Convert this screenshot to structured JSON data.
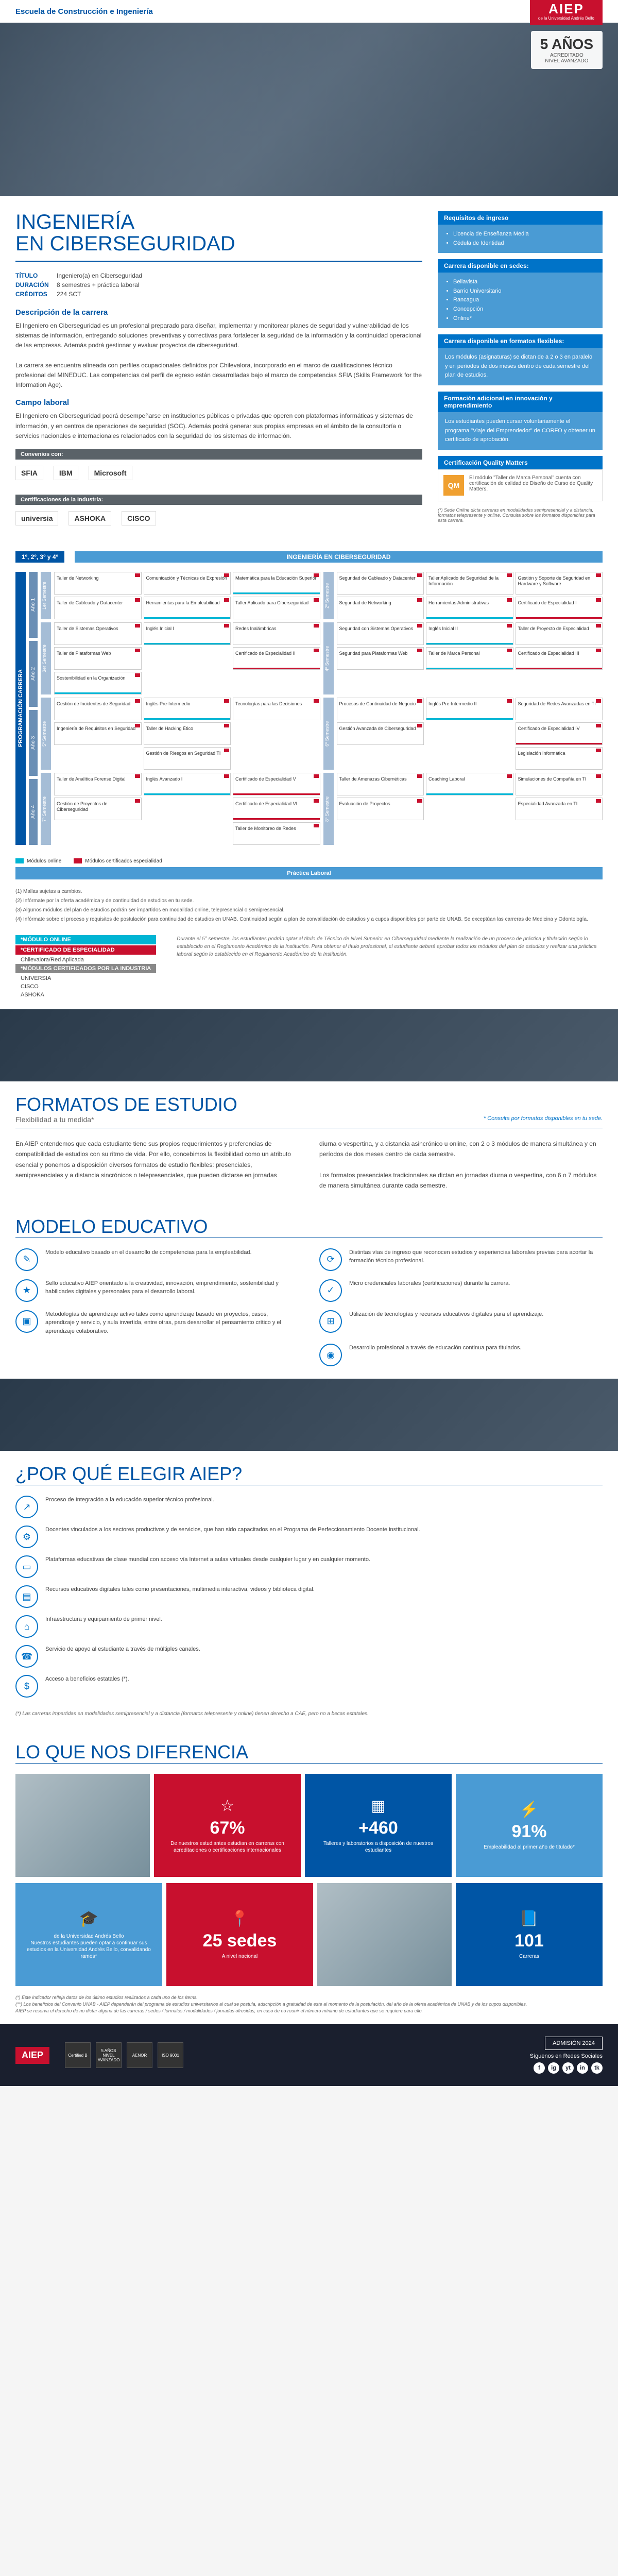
{
  "hero": {
    "school": "Escuela de Construcción e Ingeniería",
    "logo_main": "AIEP",
    "logo_sub": "de la Universidad Andrés Bello",
    "accred_years": "5 AÑOS",
    "accred_label1": "ACREDITADO",
    "accred_label2": "NIVEL AVANZADO"
  },
  "title": "INGENIERÍA\nEN CIBERSEGURIDAD",
  "meta": {
    "titulo_lab": "TÍTULO",
    "titulo_val": "Ingeniero(a) en Ciberseguridad",
    "duracion_lab": "DURACIÓN",
    "duracion_val": "8 semestres + práctica laboral",
    "creditos_lab": "CRÉDITOS",
    "creditos_val": "224 SCT"
  },
  "desc_head": "Descripción de la carrera",
  "desc_body": "El Ingeniero en Ciberseguridad es un profesional preparado para diseñar, implementar y monitorear planes de seguridad y vulnerabilidad de los sistemas de información, entregando soluciones preventivas y correctivas para fortalecer la seguridad de la información y la continuidad operacional de las empresas. Además podrá gestionar y evaluar proyectos de ciberseguridad.\nLa carrera se encuentra alineada con perfiles ocupacionales definidos por Chilevalora, incorporado en el marco de cualificaciones técnico profesional del MINEDUC. Las competencias del perfil de egreso están desarrolladas bajo el marco de competencias SFIA (Skills Framework for the Information Age).",
  "campo_head": "Campo laboral",
  "campo_body": "El Ingeniero en Ciberseguridad podrá desempeñarse en instituciones públicas o privadas que operen con plataformas informáticas y sistemas de información, y en centros de operaciones de seguridad (SOC). Además podrá generar sus propias empresas en el ámbito de la consultoría o servicios nacionales e internacionales relacionados con la seguridad de los sistemas de información.",
  "convenios_head": "Convenios con:",
  "convenios": [
    "SFIA",
    "IBM",
    "Microsoft"
  ],
  "cert_head": "Certificaciones de la Industria:",
  "certs": [
    "universia",
    "ASHOKA",
    "CISCO"
  ],
  "side": {
    "req_head": "Requisitos de ingreso",
    "req_items": [
      "Licencia de Enseñanza Media",
      "Cédula de Identidad"
    ],
    "sedes_head": "Carrera disponible en sedes:",
    "sedes_items": [
      "Bellavista",
      "Barrio Universitario",
      "Rancagua",
      "Concepción",
      "Online*"
    ],
    "flex_head": "Carrera disponible en formatos flexibles:",
    "flex_body": "Los módulos (asignaturas) se dictan de a 2 o 3 en paralelo y en períodos de dos meses dentro de cada semestre del plan de estudios.",
    "innov_head": "Formación adicional en innovación y emprendimiento",
    "innov_body": "Los estudiantes pueden cursar voluntariamente el programa \"Viaje del Emprendedor\" de CORFO y obtener un certificado de aprobación.",
    "qm_head": "Certificación Quality Matters",
    "qm_body": "El módulo \"Taller de Marca Personal\" cuenta con certificación de calidad de Diseño de Curso de Quality Matters.",
    "footnote": "(*) Sede Online dicta carreras en modalidades semipresencial y a distancia, formatos telepresente y online. Consulta sobre los formatos disponibles para esta carrera."
  },
  "curric": {
    "side_label": "PROGRAMACIÓN CARRERA",
    "banner1": "1º, 2º, 3º y 4º",
    "banner2": "INGENIERÍA EN CIBERSEGURIDAD",
    "years": [
      "Año 1",
      "Año 2",
      "Año 3",
      "Año 4"
    ],
    "semesters": [
      {
        "label": "1er Semestre",
        "courses": [
          {
            "t": "Taller de Networking"
          },
          {
            "t": "Comunicación y Técnicas de Expresión"
          },
          {
            "t": "Matemática para la Educación Superior",
            "m": "online"
          },
          {
            "t": "Taller de Cableado y Datacenter"
          },
          {
            "t": "Herramientas para la Empleabilidad",
            "m": "online"
          },
          {
            "t": "Taller Aplicado para Ciberseguridad"
          }
        ]
      },
      {
        "label": "2º Semestre",
        "courses": [
          {
            "t": "Seguridad de Cableado y Datacenter"
          },
          {
            "t": "Taller Aplicado de Seguridad de la Información"
          },
          {
            "t": "Gestión y Soporte de Seguridad en Hardware y Software"
          },
          {
            "t": "Seguridad de Networking"
          },
          {
            "t": "Herramientas Administrativas",
            "m": "online"
          },
          {
            "t": "Certificado de Especialidad I",
            "m": "spec"
          }
        ]
      },
      {
        "label": "3er Semestre",
        "courses": [
          {
            "t": "Taller de Sistemas Operativos"
          },
          {
            "t": "Inglés Inicial I",
            "m": "online"
          },
          {
            "t": "Redes Inalámbricas"
          },
          {
            "t": "Taller de Plataformas Web"
          },
          {
            "t": "",
            "empty": true
          },
          {
            "t": "Certificado de Especialidad II",
            "m": "spec"
          },
          {
            "t": "Sostenibilidad en la Organización",
            "m": "online"
          }
        ]
      },
      {
        "label": "4º Semestre",
        "courses": [
          {
            "t": "Seguridad con Sistemas Operativos"
          },
          {
            "t": "Inglés Inicial II",
            "m": "online"
          },
          {
            "t": "Taller de Proyecto de Especialidad"
          },
          {
            "t": "Seguridad para Plataformas Web"
          },
          {
            "t": "Taller de Marca Personal",
            "m": "online"
          },
          {
            "t": "Certificado de Especialidad III",
            "m": "spec"
          }
        ]
      },
      {
        "label": "5º Semestre",
        "courses": [
          {
            "t": "Gestión de Incidentes de Seguridad"
          },
          {
            "t": "Inglés Pre-Intermedio",
            "m": "online"
          },
          {
            "t": "Tecnologías para las Decisiones"
          },
          {
            "t": "Ingeniería de Requisitos en Seguridad"
          },
          {
            "t": "Taller de Hacking Ético"
          },
          {
            "t": "",
            "empty": true
          },
          {
            "t": "",
            "empty": true
          },
          {
            "t": "Gestión de Riesgos en Seguridad TI"
          }
        ]
      },
      {
        "label": "6º Semestre",
        "courses": [
          {
            "t": "Procesos de Continuidad de Negocio"
          },
          {
            "t": "Inglés Pre-Intermedio II",
            "m": "online"
          },
          {
            "t": "Seguridad de Redes Avanzadas en TI"
          },
          {
            "t": "Gestión Avanzada de Ciberseguridad"
          },
          {
            "t": "",
            "empty": true
          },
          {
            "t": "Certificado de Especialidad IV",
            "m": "spec"
          },
          {
            "t": "",
            "empty": true
          },
          {
            "t": "",
            "empty": true
          },
          {
            "t": "Legislación Informática"
          }
        ]
      },
      {
        "label": "7º Semestre",
        "courses": [
          {
            "t": "Taller de Analítica Forense Digital"
          },
          {
            "t": "Inglés Avanzado I",
            "m": "online"
          },
          {
            "t": "Certificado de Especialidad V",
            "m": "spec"
          },
          {
            "t": "Gestión de Proyectos de Ciberseguridad"
          },
          {
            "t": "",
            "empty": true
          },
          {
            "t": "Certificado de Especialidad VI",
            "m": "spec"
          },
          {
            "t": "",
            "empty": true
          },
          {
            "t": "",
            "empty": true
          },
          {
            "t": "Taller de Monitoreo de Redes"
          }
        ]
      },
      {
        "label": "8º Semestre",
        "courses": [
          {
            "t": "Taller de Amenazas Cibernéticas"
          },
          {
            "t": "Coaching Laboral",
            "m": "online"
          },
          {
            "t": "Simulaciones de Compañía en TI"
          },
          {
            "t": "Evaluación de Proyectos"
          },
          {
            "t": "",
            "empty": true
          },
          {
            "t": "Especialidad Avanzada en TI"
          }
        ]
      }
    ],
    "legend_online": "Módulos online",
    "legend_spec": "Módulos certificados especialidad",
    "practica": "Práctica Laboral",
    "footnotes": [
      "(1) Mallas sujetas a cambios.",
      "(2) Infórmate por la oferta académica y de continuidad de estudios en tu sede.",
      "(3) Algunos módulos del plan de estudios podrán ser impartidos en modalidad online, telepresencial o semipresencial.",
      "(4) Infórmate sobre el proceso y requisitos de postulación para continuidad de estudios en UNAB. Continuidad según a plan de convalidación de estudios y a cupos disponibles por parte de UNAB. Se exceptúan las carreras de Medicina y Odontología."
    ],
    "mod_online_head": "*MÓDULO ONLINE",
    "mod_spec_head": "*CERTIFICADO DE ESPECIALIDAD",
    "mod_spec_item": "Chilevalora/Red Aplicada",
    "mod_ind_head": "*MÓDULOS CERTIFICADOS POR LA INDUSTRIA",
    "mod_ind_items": [
      "UNIVERSIA",
      "CISCO",
      "ASHOKA"
    ],
    "mod_desc": "Durante el 5° semestre, los estudiantes podrán optar al título de Técnico de Nivel Superior en Ciberseguridad mediante la realización de un proceso de práctica y titulación según lo establecido en el Reglamento Académico de la Institución. Para obtener el título profesional, el estudiante deberá aprobar todos los módulos del plan de estudios y realizar una práctica laboral según lo establecido en el Reglamento Académico de la Institución."
  },
  "formatos": {
    "title": "FORMATOS DE ESTUDIO",
    "subtitle": "Flexibilidad a tu medida*",
    "note": "* Consulta por formatos disponibles en tu sede.",
    "col1": "En AIEP entendemos que cada estudiante tiene sus propios requerimientos y preferencias de compatibilidad de estudios con su ritmo de vida. Por ello, concebimos la flexibilidad como un atributo esencial y ponemos a disposición diversos formatos de estudio flexibles: presenciales, semipresenciales y a distancia sincrónicos o telepresenciales, que pueden dictarse en jornadas",
    "col2": "diurna o vespertina, y a distancia asincrónico u online, con 2 o 3 módulos de manera simultánea y en períodos de dos meses dentro de cada semestre.\n\nLos formatos presenciales tradicionales se dictan en jornadas diurna o vespertina, con 6 o 7 módulos de manera simultánea durante cada semestre."
  },
  "modelo": {
    "title": "MODELO EDUCATIVO",
    "items": [
      {
        "icon": "✎",
        "text": "Modelo educativo basado en el desarrollo de competencias para la empleabilidad."
      },
      {
        "icon": "⟳",
        "text": "Distintas vías de ingreso que reconocen estudios y experiencias laborales previas para acortar la formación técnico profesional."
      },
      {
        "icon": "★",
        "text": "Sello educativo AIEP orientado a la creatividad, innovación, emprendimiento, sostenibilidad y habilidades digitales y personales para el desarrollo laboral."
      },
      {
        "icon": "✓",
        "text": "Micro credenciales laborales (certificaciones) durante la carrera."
      },
      {
        "icon": "▣",
        "text": "Metodologías de aprendizaje activo tales como aprendizaje basado en proyectos, casos, aprendizaje y servicio, y aula invertida, entre otras, para desarrollar el pensamiento crítico y el aprendizaje colaborativo."
      },
      {
        "icon": "⊞",
        "text": "Utilización de tecnologías y recursos educativos digitales para el aprendizaje."
      },
      {
        "icon": "",
        "text": ""
      },
      {
        "icon": "◉",
        "text": "Desarrollo profesional a través de educación continua para titulados."
      }
    ]
  },
  "elegir": {
    "title": "¿POR QUÉ ELEGIR AIEP?",
    "items": [
      {
        "icon": "↗",
        "text": "Proceso de Integración a la educación superior técnico profesional."
      },
      {
        "icon": "⚙",
        "text": "Docentes vinculados a los sectores productivos y de servicios, que han sido capacitados en el Programa de Perfeccionamiento Docente institucional."
      },
      {
        "icon": "▭",
        "text": "Plataformas educativas de clase mundial con acceso vía Internet a aulas virtuales desde cualquier lugar y en cualquier momento."
      },
      {
        "icon": "▤",
        "text": "Recursos educativos digitales tales como presentaciones, multimedia interactiva, videos y biblioteca digital."
      },
      {
        "icon": "⌂",
        "text": "Infraestructura y equipamiento de primer nivel."
      },
      {
        "icon": "☎",
        "text": "Servicio de apoyo al estudiante a través de múltiples canales."
      },
      {
        "icon": "$",
        "text": "Acceso a beneficios estatales (*)."
      }
    ],
    "footnote": "(*) Las carreras impartidas en modalidades semipresencial y a distancia (formatos telepresente y online) tienen derecho a CAE, pero no a becas estatales."
  },
  "diff": {
    "title": "LO QUE NOS DIFERENCIA",
    "stats": [
      {
        "bg": "st-red",
        "icon": "☆",
        "num": "67%",
        "desc": "De nuestros estudiantes estudian en carreras con acreditaciones o certificaciones internacionales"
      },
      {
        "bg": "st-blue",
        "icon": "▦",
        "num": "+460",
        "desc": "Talleres y laboratorios a disposición de nuestros estudiantes"
      },
      {
        "bg": "st-lblue",
        "icon": "⚡",
        "num": "91%",
        "desc": "Empleabilidad al primer año de titulado*"
      },
      {
        "bg": "st-lblue",
        "icon": "🎓",
        "num": "",
        "desc": "de la Universidad Andrés Bello\nNuestros estudiantes pueden optar a continuar sus estudios en la Universidad Andrés Bello, convalidando ramos*"
      },
      {
        "bg": "st-red",
        "icon": "📍",
        "num": "25 sedes",
        "desc": "A nivel nacional"
      },
      {
        "bg": "st-blue",
        "icon": "📘",
        "num": "101",
        "desc": "Carreras"
      }
    ],
    "footnotes": "(*) Este indicador refleja datos de los último estudios realizados a cada uno de los ítems.\n(**) Los beneficios del Convenio UNAB - AIEP dependerán del programa de estudios universitarios al cual se postula, adscripción a gratuidad de este al momento de la postulación, del año de la oferta académica de UNAB y de los cupos disponibles.\nAIEP se reserva el derecho de no dictar alguna de las carreras / sedes / formatos / modalidades / jornadas ofrecidas, en caso de no reunir el número mínimo de estudiantes que se requiere para ello."
  },
  "footer": {
    "logo": "AIEP",
    "badges": [
      "Certified B",
      "5 AÑOS NIVEL AVANZADO",
      "AENOR",
      "ISO 9001"
    ],
    "admision": "ADMISIÓN 2024",
    "social_label": "Síguenos en Redes Sociales",
    "socials": [
      "f",
      "ig",
      "yt",
      "in",
      "tk"
    ]
  }
}
